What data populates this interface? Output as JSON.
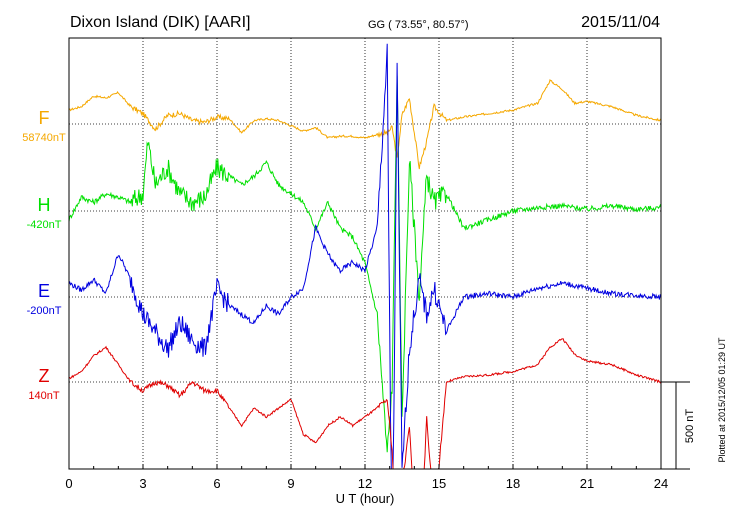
{
  "header": {
    "station": "Dixon Island (DIK)  [AARI]",
    "coords": "GG ( 73.55°,  80.57°)",
    "date": "2015/11/04"
  },
  "footer_note": "Plotted at 2015/12/05 01:29 UT",
  "scale_label": "500 nT",
  "colors": {
    "F": "#f5a800",
    "H": "#00e000",
    "E": "#0000e0",
    "Z": "#e00000"
  },
  "chart_data": {
    "type": "line",
    "title": "Dixon Island (DIK)  [AARI]",
    "xlabel": "U T (hour)",
    "xlim": [
      0,
      24
    ],
    "x_ticks": [
      "0",
      "3",
      "6",
      "9",
      "12",
      "15",
      "18",
      "21",
      "24"
    ],
    "grid": true,
    "scale_bar_nT": 500,
    "series": [
      {
        "name": "F",
        "baseline_label": "58740nT",
        "baseline_nT": 58740,
        "x": [
          0,
          0.5,
          1,
          1.5,
          2,
          2.5,
          3,
          3.5,
          4,
          4.5,
          5,
          5.5,
          6,
          6.5,
          7,
          7.5,
          8,
          8.5,
          9,
          9.5,
          10,
          10.5,
          11,
          11.5,
          12,
          12.5,
          12.9,
          13.1,
          13.3,
          13.5,
          13.8,
          14.2,
          14.5,
          14.8,
          15.3,
          16,
          17,
          18,
          19,
          19.5,
          20,
          20.5,
          21,
          22,
          23,
          24
        ],
        "values": [
          80,
          100,
          160,
          150,
          180,
          100,
          60,
          -30,
          50,
          60,
          20,
          10,
          40,
          30,
          -50,
          20,
          30,
          20,
          -10,
          -40,
          -20,
          -80,
          -70,
          -70,
          -80,
          -60,
          -50,
          -20,
          -200,
          50,
          150,
          -250,
          -100,
          100,
          20,
          40,
          60,
          80,
          120,
          250,
          200,
          120,
          130,
          100,
          50,
          20
        ]
      },
      {
        "name": "H",
        "baseline_label": "-420nT",
        "baseline_nT": -420,
        "x": [
          0,
          0.5,
          1,
          1.5,
          2,
          2.5,
          3,
          3.2,
          3.5,
          4,
          4.5,
          5,
          5.5,
          6,
          6.5,
          7,
          7.5,
          8,
          8.5,
          9,
          9.5,
          10,
          10.5,
          11,
          11.5,
          12,
          12.5,
          12.9,
          13.1,
          13.3,
          13.5,
          13.8,
          14.2,
          14.5,
          14.8,
          15.3,
          16,
          17,
          18,
          19,
          20,
          21,
          22,
          23,
          24
        ],
        "values": [
          -50,
          80,
          50,
          100,
          80,
          50,
          100,
          400,
          150,
          250,
          100,
          50,
          80,
          250,
          200,
          150,
          200,
          280,
          150,
          100,
          50,
          -100,
          50,
          -100,
          -150,
          -300,
          -600,
          -1400,
          -1000,
          800,
          -1200,
          300,
          -500,
          200,
          50,
          100,
          -100,
          -50,
          0,
          20,
          30,
          10,
          30,
          10,
          20
        ]
      },
      {
        "name": "E",
        "baseline_label": "-200nT",
        "baseline_nT": -200,
        "x": [
          0,
          0.5,
          1,
          1.5,
          2,
          2.5,
          3,
          3.5,
          4,
          4.5,
          5,
          5.5,
          6,
          6.5,
          7,
          7.5,
          8,
          8.5,
          9,
          9.5,
          10,
          10.3,
          10.7,
          11,
          11.5,
          12,
          12.5,
          12.9,
          13.1,
          13.3,
          13.5,
          13.8,
          14.2,
          14.5,
          14.8,
          15.3,
          16,
          17,
          18,
          19,
          20,
          21,
          22,
          23,
          24
        ],
        "values": [
          80,
          40,
          100,
          20,
          250,
          100,
          -100,
          -200,
          -300,
          -150,
          -250,
          -300,
          50,
          -50,
          -100,
          -150,
          -50,
          -100,
          0,
          50,
          400,
          300,
          200,
          150,
          200,
          150,
          400,
          1400,
          -1800,
          1300,
          -1000,
          -300,
          100,
          -100,
          50,
          -200,
          0,
          20,
          0,
          50,
          80,
          50,
          20,
          10,
          0
        ]
      },
      {
        "name": "Z",
        "baseline_label": "140nT",
        "baseline_nT": 140,
        "x": [
          0,
          0.5,
          1,
          1.5,
          2,
          2.5,
          3,
          3.5,
          4,
          4.5,
          5,
          5.5,
          6,
          6.5,
          7,
          7.5,
          8,
          8.5,
          9,
          9.5,
          10,
          10.5,
          11,
          11.5,
          12,
          12.5,
          12.9,
          13.1,
          13.3,
          13.5,
          13.8,
          14.2,
          14.5,
          14.8,
          15.3,
          16,
          17,
          18,
          19,
          19.5,
          20,
          20.5,
          21,
          22,
          23,
          24
        ],
        "values": [
          20,
          60,
          150,
          200,
          100,
          0,
          -50,
          0,
          -20,
          -80,
          0,
          -50,
          -50,
          -150,
          -250,
          -150,
          -200,
          -150,
          -100,
          -300,
          -350,
          -250,
          -200,
          -250,
          -200,
          -150,
          -100,
          -400,
          -2000,
          -600,
          -250,
          -1200,
          -200,
          -800,
          0,
          30,
          40,
          60,
          100,
          200,
          250,
          160,
          120,
          100,
          40,
          0
        ]
      }
    ]
  }
}
